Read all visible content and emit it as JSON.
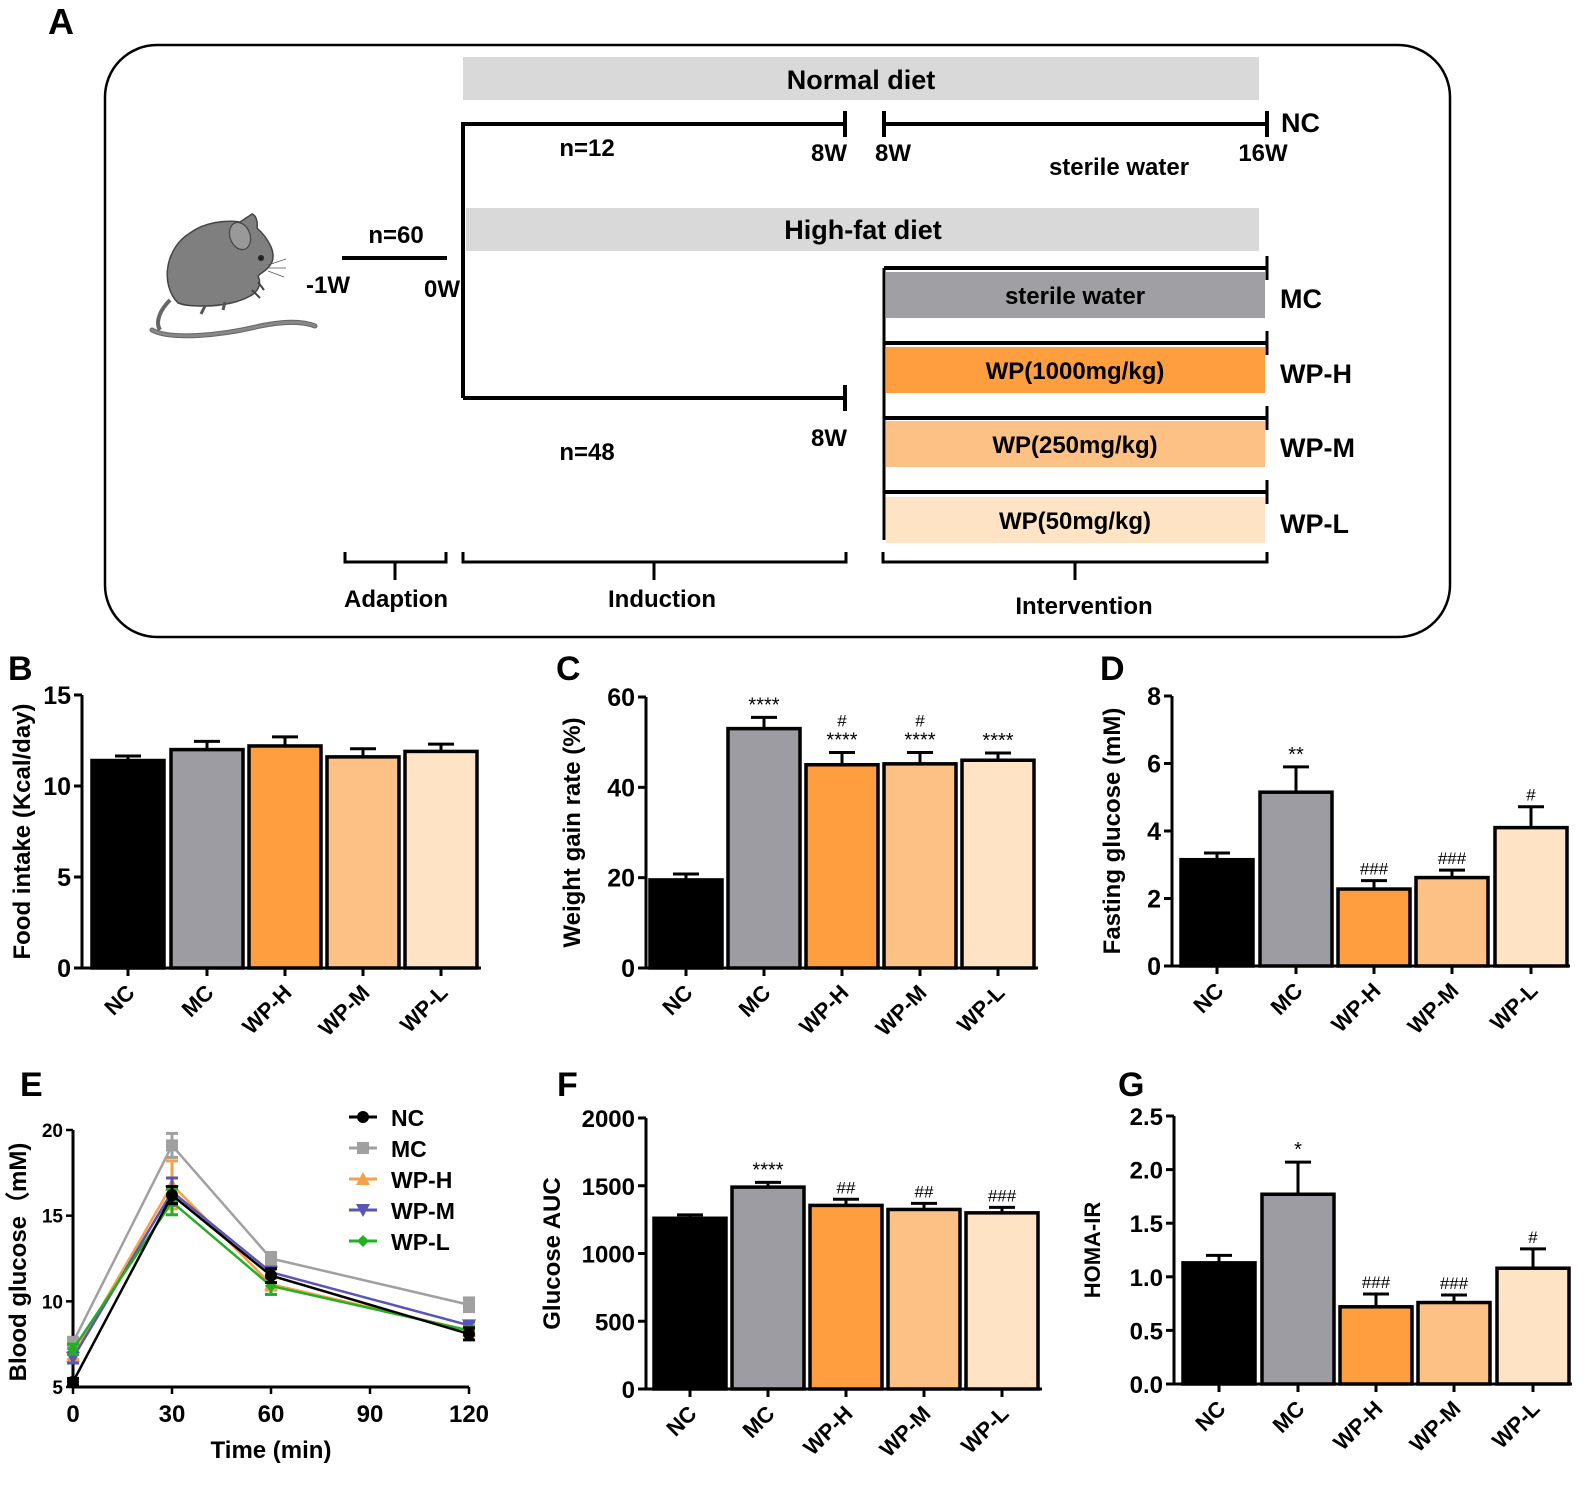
{
  "groups": [
    "NC",
    "MC",
    "WP-H",
    "WP-M",
    "WP-L"
  ],
  "group_colors": {
    "NC": "#000000",
    "MC": "#9c9ca2",
    "WP-H": "#fe9e3e",
    "WP-M": "#fec185",
    "WP-L": "#fee3c5"
  },
  "panel_a": {
    "letter": "A",
    "normal_diet_label": "Normal diet",
    "high_fat_diet_label": "High-fat diet",
    "n_total": "n=60",
    "n_normal": "n=12",
    "n_hfd": "n=48",
    "week_minus1": "-1W",
    "week_0": "0W",
    "week_8_a": "8W",
    "week_8_b": "8W",
    "week_8_c": "8W",
    "week_16": "16W",
    "nc_treatment": "sterile water",
    "nc_group": "NC",
    "interventions": [
      {
        "label": "sterile water",
        "group": "MC",
        "color": "#a0a0a4"
      },
      {
        "label": "WP(1000mg/kg)",
        "group": "WP-H",
        "color": "#fe9e3e"
      },
      {
        "label": "WP(250mg/kg)",
        "group": "WP-M",
        "color": "#fec185"
      },
      {
        "label": "WP(50mg/kg)",
        "group": "WP-L",
        "color": "#fee3c5"
      }
    ],
    "phases": [
      "Adaption",
      "Induction",
      "Intervention"
    ],
    "diet_bar_color": "#d9d9d9"
  },
  "chart_data": [
    {
      "panel": "B",
      "type": "bar",
      "title": "",
      "xlabel": "",
      "ylabel": "Food intake (Kcal/day)",
      "categories": [
        "NC",
        "MC",
        "WP-H",
        "WP-M",
        "WP-L"
      ],
      "values": [
        11.4,
        12.0,
        12.2,
        11.6,
        11.9
      ],
      "errors": [
        0.25,
        0.45,
        0.5,
        0.45,
        0.4
      ],
      "annotations": [
        "",
        "",
        "",
        "",
        ""
      ],
      "ylim": [
        0,
        15
      ],
      "yticks": [
        "0",
        "5",
        "10",
        "15"
      ],
      "ytick_values": [
        0,
        5,
        10,
        15
      ],
      "grid": false
    },
    {
      "panel": "C",
      "type": "bar",
      "title": "",
      "xlabel": "",
      "ylabel": "Weight gain rate (%)",
      "categories": [
        "NC",
        "MC",
        "WP-H",
        "WP-M",
        "WP-L"
      ],
      "values": [
        19.5,
        53.0,
        45.0,
        45.2,
        46.0
      ],
      "errors": [
        1.3,
        2.5,
        2.7,
        2.5,
        1.6
      ],
      "annotations": [
        "",
        "****",
        "#\n****",
        "#\n****",
        "****"
      ],
      "ylim": [
        0,
        60
      ],
      "yticks": [
        "0",
        "20",
        "40",
        "60"
      ],
      "ytick_values": [
        0,
        20,
        40,
        60
      ],
      "grid": false
    },
    {
      "panel": "D",
      "type": "bar",
      "title": "",
      "xlabel": "",
      "ylabel": "Fasting glucose (mM)",
      "categories": [
        "NC",
        "MC",
        "WP-H",
        "WP-M",
        "WP-L"
      ],
      "values": [
        3.15,
        5.15,
        2.28,
        2.62,
        4.1
      ],
      "errors": [
        0.2,
        0.75,
        0.25,
        0.22,
        0.62
      ],
      "annotations": [
        "",
        "**",
        "###",
        "###",
        "#"
      ],
      "ylim": [
        0,
        8
      ],
      "yticks": [
        "0",
        "2",
        "4",
        "6",
        "8"
      ],
      "ytick_values": [
        0,
        2,
        4,
        6,
        8
      ],
      "grid": false
    },
    {
      "panel": "E",
      "type": "line",
      "title": "",
      "xlabel": "Time (min)",
      "ylabel": "Blood glucose（mM)",
      "x": [
        0,
        30,
        60,
        120
      ],
      "xlim": [
        0,
        120
      ],
      "xticks": [
        "0",
        "30",
        "60",
        "90",
        "120"
      ],
      "xtick_values": [
        0,
        30,
        60,
        90,
        120
      ],
      "ylim": [
        5,
        20
      ],
      "yticks": [
        "5",
        "10",
        "15",
        "20"
      ],
      "ytick_values": [
        5,
        10,
        15,
        20
      ],
      "legend_position": "top-right",
      "grid": false,
      "series": [
        {
          "name": "NC",
          "color": "#000000",
          "marker": "circle",
          "values": [
            5.3,
            16.2,
            11.5,
            8.1
          ],
          "errors": [
            0.2,
            0.5,
            0.4,
            0.35
          ]
        },
        {
          "name": "MC",
          "color": "#a0a0a0",
          "marker": "square",
          "values": [
            7.6,
            19.1,
            12.5,
            9.8
          ],
          "errors": [
            0.3,
            0.7,
            0.35,
            0.4
          ]
        },
        {
          "name": "WP-H",
          "color": "#f7a04a",
          "marker": "triangle-up",
          "values": [
            6.8,
            16.8,
            11.0,
            8.3
          ],
          "errors": [
            0.2,
            1.4,
            0.35,
            0.3
          ]
        },
        {
          "name": "WP-M",
          "color": "#5a55b5",
          "marker": "triangle-down",
          "values": [
            6.7,
            16.4,
            11.7,
            8.6
          ],
          "errors": [
            0.3,
            0.8,
            0.3,
            0.2
          ]
        },
        {
          "name": "WP-L",
          "color": "#22b022",
          "marker": "diamond",
          "values": [
            7.2,
            15.8,
            10.9,
            8.3
          ],
          "errors": [
            0.3,
            0.75,
            0.5,
            0.2
          ]
        }
      ]
    },
    {
      "panel": "F",
      "type": "bar",
      "title": "",
      "xlabel": "",
      "ylabel": "Glucose AUC",
      "categories": [
        "NC",
        "MC",
        "WP-H",
        "WP-M",
        "WP-L"
      ],
      "values": [
        1260,
        1490,
        1355,
        1325,
        1300
      ],
      "errors": [
        25,
        35,
        45,
        45,
        40
      ],
      "annotations": [
        "",
        "****",
        "##",
        "##",
        "###"
      ],
      "ylim": [
        0,
        2000
      ],
      "yticks": [
        "0",
        "500",
        "1000",
        "1500",
        "2000"
      ],
      "ytick_values": [
        0,
        500,
        1000,
        1500,
        2000
      ],
      "grid": false
    },
    {
      "panel": "G",
      "type": "bar",
      "title": "",
      "xlabel": "",
      "ylabel": "HOMA-IR",
      "categories": [
        "NC",
        "MC",
        "WP-H",
        "WP-M",
        "WP-L"
      ],
      "values": [
        1.13,
        1.77,
        0.72,
        0.76,
        1.08
      ],
      "errors": [
        0.07,
        0.3,
        0.12,
        0.07,
        0.18
      ],
      "annotations": [
        "",
        "*",
        "###",
        "###",
        "#"
      ],
      "ylim": [
        0,
        2.5
      ],
      "yticks": [
        "0.0",
        "0.5",
        "1.0",
        "1.5",
        "2.0",
        "2.5"
      ],
      "ytick_values": [
        0,
        0.5,
        1.0,
        1.5,
        2.0,
        2.5
      ],
      "grid": false
    }
  ]
}
